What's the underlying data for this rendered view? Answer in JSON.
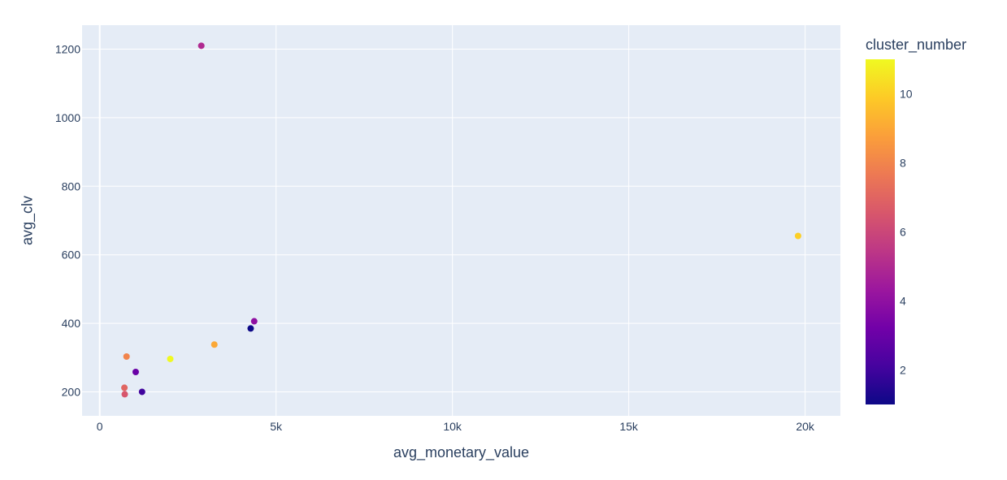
{
  "chart_data": {
    "type": "scatter",
    "xlabel": "avg_monetary_value",
    "ylabel": "avg_clv",
    "xlim": [
      -500,
      21000
    ],
    "ylim": [
      130,
      1270
    ],
    "x_ticks": [
      0,
      5000,
      10000,
      15000,
      20000
    ],
    "x_tick_labels": [
      "0",
      "5k",
      "10k",
      "15k",
      "20k"
    ],
    "y_ticks": [
      200,
      400,
      600,
      800,
      1000,
      1200
    ],
    "y_tick_labels": [
      "200",
      "400",
      "600",
      "800",
      "1000",
      "1200"
    ],
    "grid": true,
    "plot_background": "#e5ecf6",
    "colorbar": {
      "title": "cluster_number",
      "range": [
        1,
        11
      ],
      "ticks": [
        2,
        4,
        6,
        8,
        10
      ],
      "tick_labels": [
        "2",
        "4",
        "6",
        "8",
        "10"
      ],
      "colorscale": [
        "#0d0887",
        "#46039f",
        "#7201a8",
        "#9c179e",
        "#bd3786",
        "#d8576b",
        "#ed7953",
        "#fb9f3a",
        "#fdca26",
        "#f0f921"
      ]
    },
    "points": [
      {
        "x": 4280,
        "y": 385,
        "cluster": 1
      },
      {
        "x": 1200,
        "y": 200,
        "cluster": 2
      },
      {
        "x": 1020,
        "y": 258,
        "cluster": 3
      },
      {
        "x": 4380,
        "y": 406,
        "cluster": 4
      },
      {
        "x": 2880,
        "y": 1210,
        "cluster": 5
      },
      {
        "x": 710,
        "y": 193,
        "cluster": 6.5
      },
      {
        "x": 700,
        "y": 212,
        "cluster": 7
      },
      {
        "x": 760,
        "y": 303,
        "cluster": 8
      },
      {
        "x": 3250,
        "y": 338,
        "cluster": 9
      },
      {
        "x": 19800,
        "y": 655,
        "cluster": 10
      },
      {
        "x": 2000,
        "y": 296,
        "cluster": 11
      }
    ]
  }
}
